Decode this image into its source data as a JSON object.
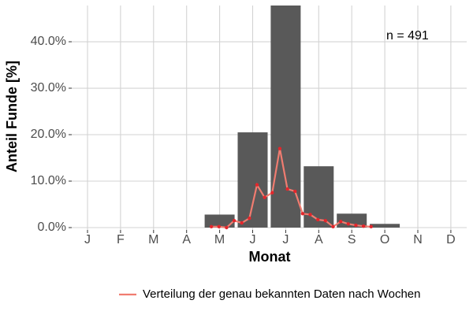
{
  "chart_data": {
    "type": "bar",
    "x_label": "Monat",
    "y_label": "Anteil Funde [%]",
    "annotation": "n = 491",
    "categories": [
      "J",
      "F",
      "M",
      "A",
      "M",
      "J",
      "J",
      "A",
      "S",
      "O",
      "N",
      "D"
    ],
    "values": [
      0,
      0,
      0,
      0,
      2.8,
      20.5,
      47.8,
      13.2,
      3.0,
      0.8,
      0,
      0
    ],
    "color": "#595959",
    "ylim": [
      0,
      47.8
    ],
    "yticks": [
      {
        "value": 0,
        "label": "0.0%"
      },
      {
        "value": 10,
        "label": "10.0%"
      },
      {
        "value": 20,
        "label": "20.0%"
      },
      {
        "value": 30,
        "label": "30.0%"
      },
      {
        "value": 40,
        "label": "40.0%"
      }
    ],
    "grid": true,
    "line": {
      "type": "line",
      "name": "Verteilung der genau bekannten Daten nach Wochen",
      "color": "#f07c70",
      "marker_color": "#e3262c",
      "x": [
        19,
        20,
        21,
        22,
        23,
        24,
        25,
        26,
        27,
        28,
        29,
        30,
        31,
        32,
        33,
        34,
        35,
        36,
        37,
        38,
        39,
        40
      ],
      "values": [
        0.2,
        0.2,
        0,
        1.5,
        1.0,
        2.0,
        9.2,
        6.5,
        7.5,
        17,
        8.3,
        7.8,
        3.0,
        2.8,
        1.7,
        1.5,
        0.2,
        1.3,
        0.8,
        0.5,
        0.3,
        0.2
      ]
    },
    "legend": "bottom"
  }
}
